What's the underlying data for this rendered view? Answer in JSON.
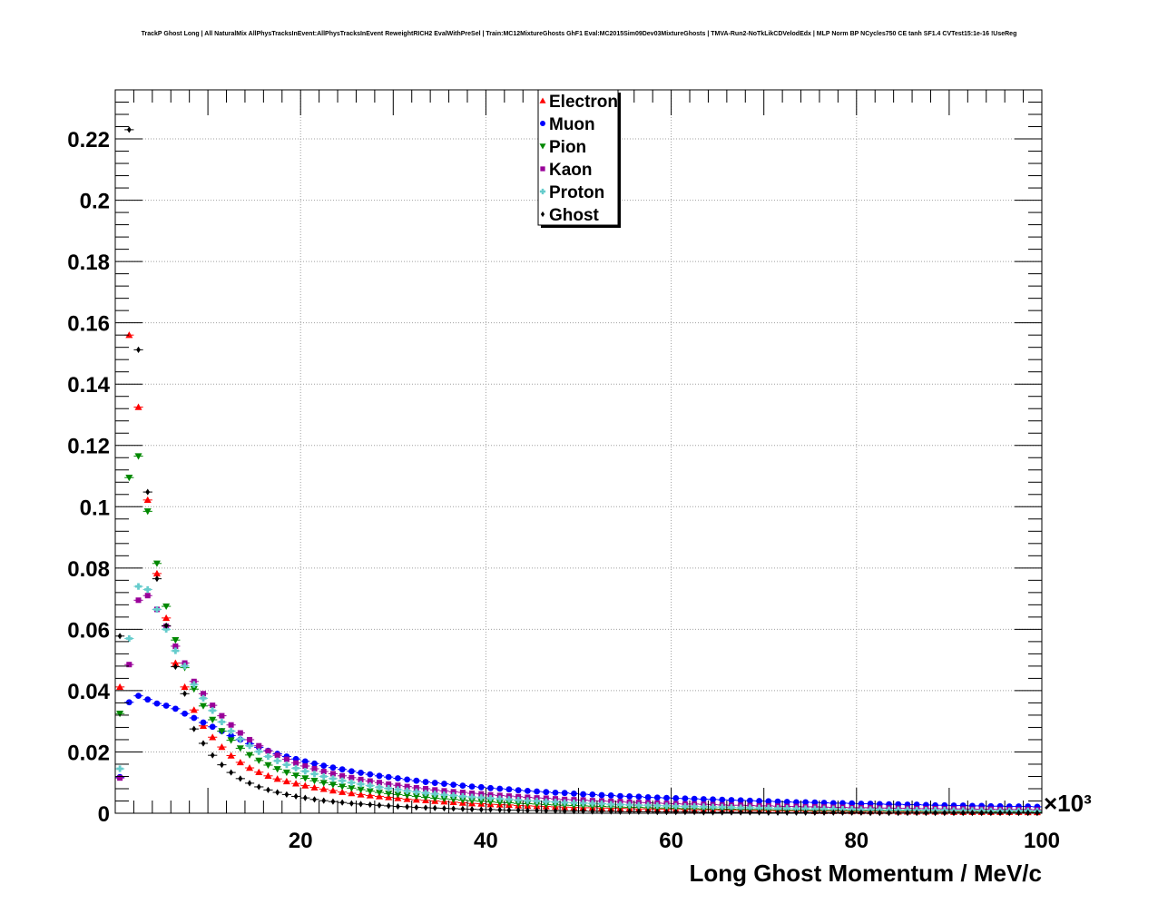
{
  "chart_data": {
    "type": "scatter",
    "title": "TrackP Ghost Long | All NaturalMix AllPhysTracksInEvent:AllPhysTracksInEvent ReweightRICH2 EvalWithPreSel | Train:MC12MixtureGhosts GhF1 Eval:MC2015Sim09Dev03MixtureGhosts | TMVA-Run2-NoTkLikCDVelodEdx | MLP Norm BP NCycles750 CE tanh SF1.4 CVTest15:1e-16 !UseReg",
    "xlabel": "Long Ghost Momentum / MeV/c",
    "x_multiplier_label": "×10³",
    "ylabel": "",
    "xlim": [
      0,
      100
    ],
    "ylim": [
      0,
      0.236
    ],
    "xticks": [
      20,
      40,
      60,
      80,
      100
    ],
    "yticks": [
      0,
      0.02,
      0.04,
      0.06,
      0.08,
      0.1,
      0.12,
      0.14,
      0.16,
      0.18,
      0.2,
      0.22
    ],
    "ytick_labels": [
      "0",
      "0.02",
      "0.04",
      "0.06",
      "0.08",
      "0.1",
      "0.12",
      "0.14",
      "0.16",
      "0.18",
      "0.2",
      "0.22"
    ],
    "grid": true,
    "legend_position": "top-center",
    "x": [
      0.5,
      1.5,
      2.5,
      3.5,
      4.5,
      5.5,
      6.5,
      7.5,
      8.5,
      9.5,
      10.5,
      11.5,
      12.5,
      13.5,
      14.5,
      15.5,
      16.5,
      17.5,
      18.5,
      19.5,
      20.5,
      21.5,
      22.5,
      23.5,
      24.5,
      25.5,
      26.5,
      27.5,
      28.5,
      29.5,
      30.5,
      31.5,
      32.5,
      33.5,
      34.5,
      35.5,
      36.5,
      37.5,
      38.5,
      39.5,
      40.5,
      41.5,
      42.5,
      43.5,
      44.5,
      45.5,
      46.5,
      47.5,
      48.5,
      49.5,
      50.5,
      51.5,
      52.5,
      53.5,
      54.5,
      55.5,
      56.5,
      57.5,
      58.5,
      59.5,
      60.5,
      61.5,
      62.5,
      63.5,
      64.5,
      65.5,
      66.5,
      67.5,
      68.5,
      69.5,
      70.5,
      71.5,
      72.5,
      73.5,
      74.5,
      75.5,
      76.5,
      77.5,
      78.5,
      79.5,
      80.5,
      81.5,
      82.5,
      83.5,
      84.5,
      85.5,
      86.5,
      87.5,
      88.5,
      89.5,
      90.5,
      91.5,
      92.5,
      93.5,
      94.5,
      95.5,
      96.5,
      97.5,
      98.5,
      99.5
    ],
    "series": [
      {
        "name": "Electron",
        "color": "#ff0000",
        "marker": "triangle-up",
        "values": [
          0.0412,
          0.156,
          0.1325,
          0.1022,
          0.0782,
          0.0637,
          0.049,
          0.0412,
          0.0337,
          0.0285,
          0.0248,
          0.0216,
          0.0188,
          0.0166,
          0.0148,
          0.0134,
          0.0122,
          0.0112,
          0.0104,
          0.0097,
          0.009,
          0.0084,
          0.0079,
          0.0074,
          0.0069,
          0.0065,
          0.0061,
          0.0058,
          0.0055,
          0.0052,
          0.0049,
          0.0046,
          0.0044,
          0.0042,
          0.004,
          0.0038,
          0.0036,
          0.0034,
          0.0032,
          0.0031,
          0.0029,
          0.0028,
          0.0027,
          0.0025,
          0.0024,
          0.0023,
          0.0022,
          0.0021,
          0.002,
          0.0019,
          0.0018,
          0.0018,
          0.0017,
          0.0016,
          0.0016,
          0.0015,
          0.0014,
          0.0014,
          0.0013,
          0.0013,
          0.0012,
          0.0012,
          0.0011,
          0.0011,
          0.0011,
          0.001,
          0.001,
          0.001,
          0.0009,
          0.0009,
          0.0009,
          0.0008,
          0.0008,
          0.0008,
          0.0008,
          0.0007,
          0.0007,
          0.0007,
          0.0007,
          0.0006,
          0.0006,
          0.0006,
          0.0006,
          0.0006,
          0.0005,
          0.0005,
          0.0005,
          0.0005,
          0.0005,
          0.0005,
          0.0004,
          0.0004,
          0.0004,
          0.0004,
          0.0004,
          0.0004,
          0.0004,
          0.0004,
          0.0003,
          0.0003
        ]
      },
      {
        "name": "Muon",
        "color": "#0000ff",
        "marker": "circle",
        "values": [
          0.0118,
          0.0362,
          0.0383,
          0.0371,
          0.0358,
          0.0351,
          0.0341,
          0.0325,
          0.0311,
          0.0296,
          0.0282,
          0.0268,
          0.0253,
          0.024,
          0.0227,
          0.0215,
          0.0204,
          0.0194,
          0.0185,
          0.0177,
          0.0169,
          0.0162,
          0.0155,
          0.0149,
          0.0143,
          0.0137,
          0.0132,
          0.0127,
          0.0122,
          0.0118,
          0.0114,
          0.011,
          0.0106,
          0.0102,
          0.0099,
          0.0096,
          0.0093,
          0.009,
          0.0087,
          0.0085,
          0.0082,
          0.008,
          0.0078,
          0.0075,
          0.0073,
          0.0071,
          0.0069,
          0.0067,
          0.0066,
          0.0064,
          0.0062,
          0.0061,
          0.0059,
          0.0058,
          0.0056,
          0.0055,
          0.0054,
          0.0052,
          0.0051,
          0.005,
          0.0049,
          0.0048,
          0.0047,
          0.0046,
          0.0045,
          0.0044,
          0.0043,
          0.0042,
          0.0041,
          0.004,
          0.0039,
          0.0038,
          0.0037,
          0.0036,
          0.0036,
          0.0035,
          0.0034,
          0.0033,
          0.0033,
          0.0032,
          0.0031,
          0.0031,
          0.003,
          0.0029,
          0.0029,
          0.0028,
          0.0028,
          0.0027,
          0.0026,
          0.0026,
          0.0025,
          0.0025,
          0.0024,
          0.0024,
          0.0023,
          0.0023,
          0.0022,
          0.0022,
          0.0022,
          0.0021
        ]
      },
      {
        "name": "Pion",
        "color": "#008800",
        "marker": "triangle-down",
        "values": [
          0.0325,
          0.1095,
          0.1165,
          0.0985,
          0.0815,
          0.0675,
          0.0565,
          0.0475,
          0.0405,
          0.035,
          0.0305,
          0.0268,
          0.0238,
          0.0212,
          0.019,
          0.0172,
          0.0157,
          0.0144,
          0.0133,
          0.0123,
          0.0114,
          0.0106,
          0.0099,
          0.0093,
          0.0087,
          0.0082,
          0.0077,
          0.0072,
          0.0068,
          0.0064,
          0.0061,
          0.0058,
          0.0055,
          0.0052,
          0.0049,
          0.0047,
          0.0045,
          0.0043,
          0.0041,
          0.0039,
          0.0037,
          0.0035,
          0.0034,
          0.0032,
          0.0031,
          0.003,
          0.0028,
          0.0027,
          0.0026,
          0.0025,
          0.0024,
          0.0023,
          0.0022,
          0.0021,
          0.002,
          0.0019,
          0.0019,
          0.0018,
          0.0017,
          0.0017,
          0.0016,
          0.0015,
          0.0015,
          0.0014,
          0.0014,
          0.0013,
          0.0013,
          0.0012,
          0.0012,
          0.0012,
          0.0011,
          0.0011,
          0.001,
          0.001,
          0.001,
          0.0009,
          0.0009,
          0.0009,
          0.0009,
          0.0008,
          0.0008,
          0.0008,
          0.0008,
          0.0007,
          0.0007,
          0.0007,
          0.0007,
          0.0006,
          0.0006,
          0.0006,
          0.0006,
          0.0006,
          0.0006,
          0.0005,
          0.0005,
          0.0005,
          0.0005,
          0.0005,
          0.0005,
          0.0004
        ]
      },
      {
        "name": "Kaon",
        "color": "#990099",
        "marker": "square",
        "values": [
          0.0115,
          0.0485,
          0.0695,
          0.071,
          0.0665,
          0.061,
          0.0545,
          0.049,
          0.043,
          0.039,
          0.0352,
          0.0318,
          0.0288,
          0.0262,
          0.024,
          0.022,
          0.0203,
          0.0189,
          0.0176,
          0.0164,
          0.0154,
          0.0145,
          0.0136,
          0.0129,
          0.0122,
          0.0116,
          0.011,
          0.0105,
          0.01,
          0.0095,
          0.0091,
          0.0087,
          0.0083,
          0.008,
          0.0076,
          0.0073,
          0.007,
          0.0068,
          0.0065,
          0.0063,
          0.006,
          0.0058,
          0.0056,
          0.0054,
          0.0052,
          0.005,
          0.0049,
          0.0047,
          0.0045,
          0.0044,
          0.0043,
          0.0041,
          0.004,
          0.0039,
          0.0038,
          0.0036,
          0.0035,
          0.0034,
          0.0033,
          0.0032,
          0.0031,
          0.003,
          0.003,
          0.0029,
          0.0028,
          0.0027,
          0.0026,
          0.0026,
          0.0025,
          0.0024,
          0.0024,
          0.0023,
          0.0022,
          0.0022,
          0.0021,
          0.0021,
          0.002,
          0.0019,
          0.0019,
          0.0018,
          0.0018,
          0.0018,
          0.0017,
          0.0017,
          0.0016,
          0.0016,
          0.0015,
          0.0015,
          0.0015,
          0.0014,
          0.0014,
          0.0014,
          0.0013,
          0.0013,
          0.0013,
          0.0012,
          0.0012,
          0.0012,
          0.0012,
          0.0011
        ]
      },
      {
        "name": "Proton",
        "color": "#66cccc",
        "marker": "cross",
        "values": [
          0.0145,
          0.057,
          0.074,
          0.073,
          0.0665,
          0.06,
          0.053,
          0.048,
          0.042,
          0.0375,
          0.0335,
          0.0298,
          0.0268,
          0.0242,
          0.022,
          0.0201,
          0.0185,
          0.0171,
          0.0158,
          0.0147,
          0.0137,
          0.0128,
          0.012,
          0.0113,
          0.0106,
          0.01,
          0.0095,
          0.009,
          0.0085,
          0.0081,
          0.0077,
          0.0073,
          0.007,
          0.0066,
          0.0063,
          0.006,
          0.0058,
          0.0055,
          0.0053,
          0.0051,
          0.0049,
          0.0047,
          0.0045,
          0.0043,
          0.0041,
          0.004,
          0.0038,
          0.0037,
          0.0035,
          0.0034,
          0.0033,
          0.0032,
          0.0031,
          0.0029,
          0.0028,
          0.0027,
          0.0026,
          0.0026,
          0.0025,
          0.0024,
          0.0023,
          0.0022,
          0.0022,
          0.0021,
          0.002,
          0.002,
          0.0019,
          0.0018,
          0.0018,
          0.0017,
          0.0017,
          0.0016,
          0.0016,
          0.0015,
          0.0015,
          0.0014,
          0.0014,
          0.0014,
          0.0013,
          0.0013,
          0.0012,
          0.0012,
          0.0012,
          0.0011,
          0.0011,
          0.0011,
          0.001,
          0.001,
          0.001,
          0.001,
          0.0009,
          0.0009,
          0.0009,
          0.0009,
          0.0008,
          0.0008,
          0.0008,
          0.0008,
          0.0008,
          0.0007
        ]
      },
      {
        "name": "Ghost",
        "color": "#000000",
        "marker": "diamond",
        "values": [
          0.0578,
          0.223,
          0.1512,
          0.1048,
          0.0765,
          0.0612,
          0.0478,
          0.039,
          0.0275,
          0.0228,
          0.0189,
          0.0158,
          0.0133,
          0.0113,
          0.0098,
          0.0086,
          0.0076,
          0.0068,
          0.0061,
          0.0055,
          0.005,
          0.0045,
          0.0041,
          0.0038,
          0.0035,
          0.0032,
          0.003,
          0.0028,
          0.0026,
          0.0024,
          0.0022,
          0.0021,
          0.0019,
          0.0018,
          0.0017,
          0.0016,
          0.0015,
          0.0014,
          0.0013,
          0.0012,
          0.0012,
          0.0011,
          0.001,
          0.001,
          0.0009,
          0.0009,
          0.0008,
          0.0008,
          0.0007,
          0.0007,
          0.0007,
          0.0006,
          0.0006,
          0.0006,
          0.0005,
          0.0005,
          0.0005,
          0.0005,
          0.0004,
          0.0004,
          0.0004,
          0.0004,
          0.0004,
          0.0003,
          0.0003,
          0.0003,
          0.0003,
          0.0003,
          0.0003,
          0.0003,
          0.0002,
          0.0002,
          0.0002,
          0.0002,
          0.0002,
          0.0002,
          0.0002,
          0.0002,
          0.0002,
          0.0002,
          0.0002,
          0.0001,
          0.0001,
          0.0001,
          0.0001,
          0.0001,
          0.0001,
          0.0001,
          0.0001,
          0.0001,
          0.0001,
          0.0001,
          0.0001,
          0.0001,
          0.0001,
          0.0001,
          0.0001,
          0.0001,
          0.0001,
          0.0001
        ]
      }
    ]
  }
}
